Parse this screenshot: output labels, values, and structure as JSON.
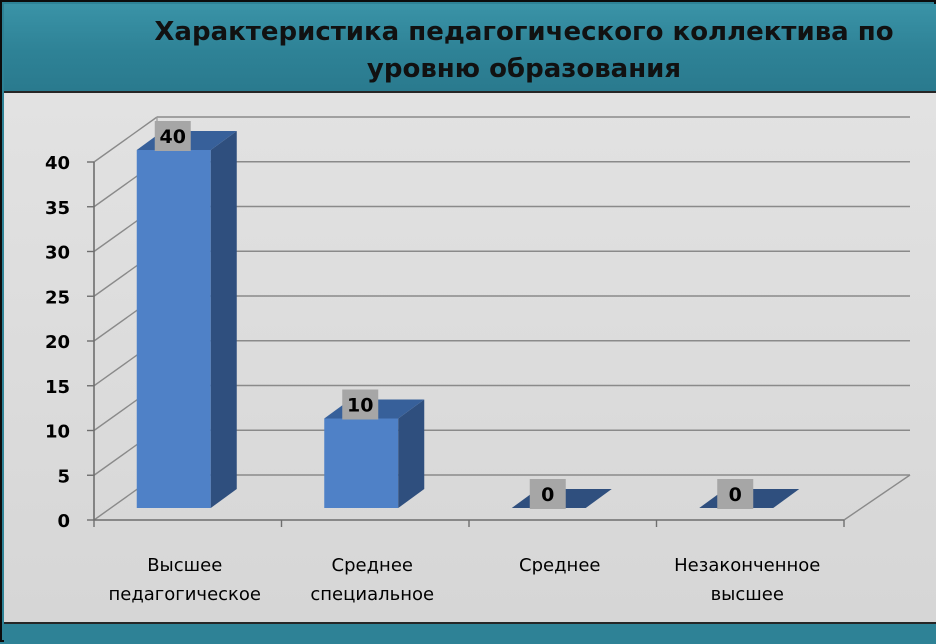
{
  "chart_data": {
    "type": "bar",
    "title": "Характеристика педагогического коллектива по уровню образования",
    "categories": [
      [
        "Высшее",
        "педагогическое"
      ],
      [
        "Среднее",
        "специальное"
      ],
      [
        "Среднее"
      ],
      [
        "Незаконченное",
        "высшее"
      ]
    ],
    "values": [
      40,
      10,
      0,
      0
    ],
    "ylim": [
      0,
      40
    ],
    "y_ticks": [
      0,
      5,
      10,
      15,
      20,
      25,
      30,
      35,
      40
    ],
    "grid": true,
    "style_3d": true,
    "colors": {
      "bar_front": "#4f81c7",
      "bar_side": "#2f4f7e",
      "bar_top": "#37609a",
      "label_box": "#a6a6a6"
    }
  }
}
